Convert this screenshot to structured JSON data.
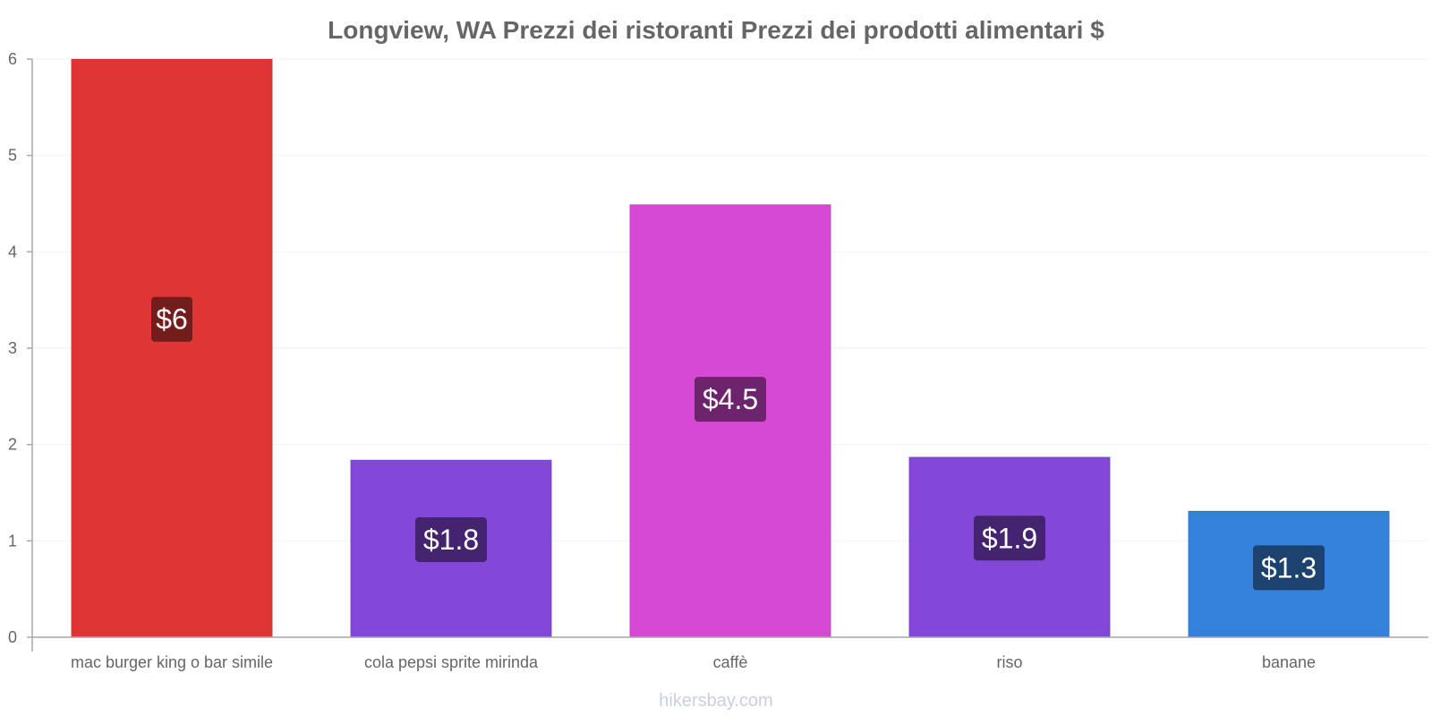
{
  "chart_data": {
    "type": "bar",
    "title": "Longview, WA Prezzi dei ristoranti Prezzi dei prodotti alimentari $",
    "categories": [
      "mac burger king o bar simile",
      "cola pepsi sprite mirinda",
      "caffè",
      "riso",
      "banane"
    ],
    "values": [
      6,
      1.84,
      4.49,
      1.87,
      1.31
    ],
    "value_labels": [
      "$6",
      "$1.8",
      "$4.5",
      "$1.9",
      "$1.3"
    ],
    "colors": [
      "#e03535",
      "#8249d9",
      "#d649d4",
      "#8249d9",
      "#3582dd"
    ],
    "label_bg_colors": [
      "#721c1c",
      "#44246f",
      "#6d246c",
      "#44246f",
      "#1c426f"
    ],
    "ylim": [
      0,
      6
    ],
    "yticks": [
      0,
      1,
      2,
      3,
      4,
      5,
      6
    ],
    "xlabel": "",
    "ylabel": "",
    "grid": true
  },
  "footer": "hikersbay.com"
}
